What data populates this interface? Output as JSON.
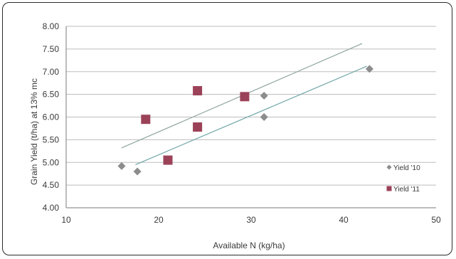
{
  "chart_data": {
    "type": "scatter",
    "xlabel": "Available N (kg/ha)",
    "ylabel": "Grain Yield (t/ha) at 13% mc",
    "xlim": [
      10,
      50
    ],
    "ylim": [
      4.0,
      8.0
    ],
    "x_ticks": [
      "10",
      "20",
      "30",
      "40",
      "50"
    ],
    "y_ticks": [
      "4.00",
      "4.50",
      "5.00",
      "5.50",
      "6.00",
      "6.50",
      "7.00",
      "7.50",
      "8.00"
    ],
    "grid": "horizontal",
    "legend_position": "right",
    "series": [
      {
        "name": "Yield '10",
        "marker": "diamond",
        "color": "#8c8c8c",
        "points": [
          [
            16,
            4.92
          ],
          [
            17.7,
            4.8
          ],
          [
            31.4,
            6.47
          ],
          [
            31.4,
            6.0
          ],
          [
            42.8,
            7.06
          ]
        ],
        "trendline": [
          [
            17.5,
            4.95
          ],
          [
            42.5,
            7.12
          ]
        ]
      },
      {
        "name": "Yield '11",
        "marker": "square",
        "color": "#9b4258",
        "points": [
          [
            18.6,
            5.95
          ],
          [
            21,
            5.05
          ],
          [
            24.2,
            6.58
          ],
          [
            24.2,
            5.78
          ],
          [
            29.3,
            6.45
          ]
        ],
        "trendline": [
          [
            16,
            5.32
          ],
          [
            42,
            7.62
          ]
        ]
      }
    ]
  }
}
